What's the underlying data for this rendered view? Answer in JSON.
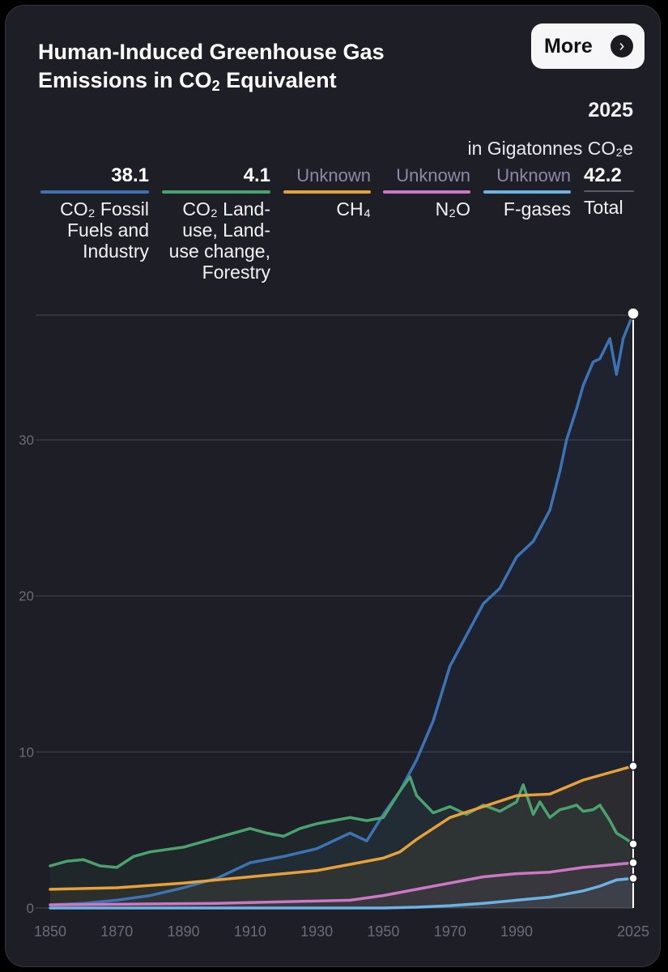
{
  "header": {
    "title_line1": "Human-Induced Greenhouse Gas",
    "title_line2_pre": "Emissions in CO",
    "title_line2_sub": "2",
    "title_line2_post": " Equivalent",
    "more_label": "More",
    "more_icon": "chevron-right-icon"
  },
  "summary": {
    "year": "2025",
    "unit": "in Gigatonnes CO₂e"
  },
  "legend": [
    {
      "value": "38.1",
      "name": "CO₂ Fossil Fuels and Industry",
      "color": "#3b73b4",
      "known": true
    },
    {
      "value": "4.1",
      "name": "CO₂ Land-use, Land-use change, Forestry",
      "color": "#4aa36e",
      "known": true
    },
    {
      "value": "Unknown",
      "name": "CH₄",
      "color": "#e6a13a",
      "known": false
    },
    {
      "value": "Unknown",
      "name": "N₂O",
      "color": "#cc78c4",
      "known": false
    },
    {
      "value": "Unknown",
      "name": "F-gases",
      "color": "#6cb3e4",
      "known": false
    },
    {
      "value": "42.2",
      "name": "Total",
      "color": "#5a5a64",
      "known": true
    }
  ],
  "chart_data": {
    "type": "line",
    "title": "Human-Induced Greenhouse Gas Emissions in CO₂ Equivalent",
    "ylabel": "",
    "xlabel": "",
    "xlim": [
      1850,
      2025
    ],
    "ylim": [
      0,
      38
    ],
    "x_ticks": [
      "1850",
      "1870",
      "1890",
      "1910",
      "1930",
      "1950",
      "1970",
      "1990",
      "2025"
    ],
    "x_tick_values": [
      1850,
      1870,
      1890,
      1910,
      1930,
      1950,
      1970,
      1990,
      2025
    ],
    "y_ticks": [
      "0",
      "10",
      "20",
      "30"
    ],
    "y_tick_values": [
      0,
      10,
      20,
      30
    ],
    "grid": true,
    "series": [
      {
        "name": "CO₂ Fossil Fuels and Industry",
        "color": "#3b73b4",
        "x": [
          1850,
          1860,
          1870,
          1880,
          1890,
          1900,
          1910,
          1920,
          1930,
          1940,
          1945,
          1950,
          1955,
          1960,
          1965,
          1970,
          1975,
          1980,
          1985,
          1990,
          1995,
          2000,
          2003,
          2005,
          2008,
          2010,
          2013,
          2015,
          2018,
          2020,
          2022,
          2025
        ],
        "y": [
          0.2,
          0.3,
          0.5,
          0.8,
          1.3,
          1.9,
          2.9,
          3.3,
          3.8,
          4.8,
          4.3,
          6.0,
          7.5,
          9.5,
          12.0,
          15.5,
          17.5,
          19.5,
          20.5,
          22.5,
          23.5,
          25.5,
          28.0,
          30.0,
          32.0,
          33.5,
          35.0,
          35.2,
          36.5,
          34.2,
          36.5,
          38.1
        ]
      },
      {
        "name": "CO₂ Land-use, Land-use change, Forestry",
        "color": "#4aa36e",
        "x": [
          1850,
          1855,
          1860,
          1865,
          1870,
          1875,
          1880,
          1890,
          1900,
          1910,
          1915,
          1920,
          1925,
          1930,
          1935,
          1940,
          1945,
          1950,
          1955,
          1958,
          1960,
          1965,
          1970,
          1975,
          1980,
          1985,
          1990,
          1992,
          1995,
          1997,
          2000,
          2003,
          2005,
          2008,
          2010,
          2013,
          2015,
          2018,
          2020,
          2023,
          2025
        ],
        "y": [
          2.7,
          3.0,
          3.1,
          2.7,
          2.6,
          3.3,
          3.6,
          3.9,
          4.5,
          5.1,
          4.8,
          4.6,
          5.1,
          5.4,
          5.6,
          5.8,
          5.6,
          5.8,
          7.5,
          8.4,
          7.2,
          6.1,
          6.5,
          6.0,
          6.6,
          6.2,
          6.8,
          7.9,
          6.0,
          6.8,
          5.8,
          6.3,
          6.4,
          6.6,
          6.2,
          6.3,
          6.6,
          5.6,
          4.8,
          4.4,
          4.1
        ]
      },
      {
        "name": "CH₄",
        "color": "#e6a13a",
        "x": [
          1850,
          1870,
          1890,
          1910,
          1930,
          1940,
          1950,
          1955,
          1960,
          1970,
          1980,
          1990,
          2000,
          2010,
          2020,
          2025
        ],
        "y": [
          1.2,
          1.3,
          1.6,
          2.0,
          2.4,
          2.8,
          3.2,
          3.6,
          4.4,
          5.8,
          6.5,
          7.2,
          7.3,
          8.2,
          8.8,
          9.1
        ]
      },
      {
        "name": "N₂O",
        "color": "#cc78c4",
        "x": [
          1850,
          1900,
          1940,
          1950,
          1960,
          1970,
          1980,
          1990,
          2000,
          2010,
          2020,
          2025
        ],
        "y": [
          0.2,
          0.3,
          0.5,
          0.8,
          1.2,
          1.6,
          2.0,
          2.2,
          2.3,
          2.6,
          2.8,
          2.9
        ]
      },
      {
        "name": "F-gases",
        "color": "#6cb3e4",
        "x": [
          1850,
          1940,
          1950,
          1960,
          1970,
          1980,
          1990,
          2000,
          2005,
          2010,
          2015,
          2020,
          2025
        ],
        "y": [
          0.0,
          0.0,
          0.0,
          0.05,
          0.15,
          0.3,
          0.5,
          0.7,
          0.9,
          1.1,
          1.4,
          1.8,
          1.9
        ]
      }
    ]
  }
}
